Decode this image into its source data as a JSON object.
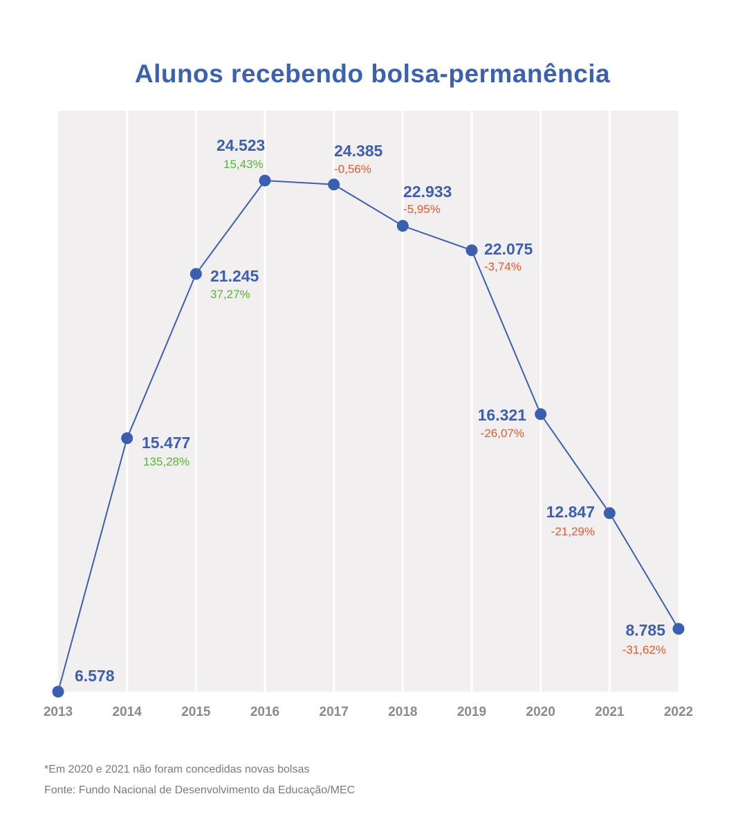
{
  "chart_data": {
    "type": "line",
    "title": "Alunos recebendo bolsa-permanência",
    "xlabel": "",
    "ylabel": "",
    "categories": [
      "2013",
      "2014",
      "2015",
      "2016",
      "2017",
      "2018",
      "2019",
      "2020",
      "2021",
      "2022"
    ],
    "values": [
      6578,
      15477,
      21245,
      24523,
      24385,
      22933,
      22075,
      16321,
      12847,
      8785
    ],
    "value_labels": [
      "6.578",
      "15.477",
      "21.245",
      "24.523",
      "24.385",
      "22.933",
      "22.075",
      "16.321",
      "12.847",
      "8.785"
    ],
    "change_labels": [
      "",
      "135,28%",
      "37,27%",
      "15,43%",
      "-0,56%",
      "-5,95%",
      "-3,74%",
      "-26,07%",
      "-21,29%",
      "-31,62%"
    ],
    "ylim": [
      6578,
      26977
    ],
    "grid": "vertical",
    "colors": {
      "line": "#3a5fb0",
      "positive": "#5cb336",
      "negative": "#e9552e",
      "background": "#f2eff0"
    }
  },
  "footnotes": {
    "note": "*Em 2020 e 2021 não foram concedidas novas bolsas",
    "source": "Fonte: Fundo Nacional de Desenvolvimento da Educação/MEC"
  }
}
